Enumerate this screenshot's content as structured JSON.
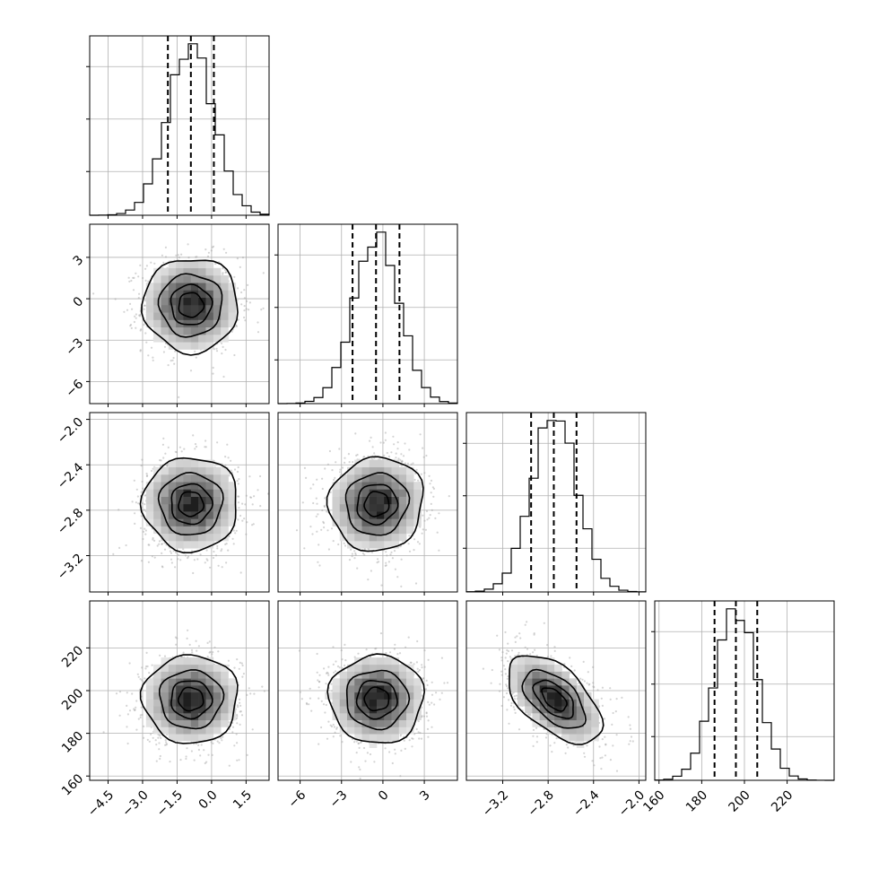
{
  "chart_data": {
    "type": "corner",
    "title": "",
    "grid": true,
    "parameters": [
      {
        "index": 0,
        "range": [
          -5.3,
          2.5
        ],
        "mean": -0.9,
        "sd": 1.0,
        "quantiles": [
          -1.9,
          -0.9,
          0.1
        ],
        "ticks": [
          -4.5,
          -3.0,
          -1.5,
          0.0,
          1.5
        ],
        "tick_labels": [
          "−4.5",
          "−3.0",
          "−1.5",
          "0.0",
          "1.5"
        ]
      },
      {
        "index": 1,
        "range": [
          -7.6,
          5.4
        ],
        "mean": -0.45,
        "sd": 1.65,
        "quantiles": [
          -2.2,
          -0.5,
          1.2
        ],
        "ticks": [
          -6,
          -3,
          0,
          3
        ],
        "tick_labels": [
          "−6",
          "−3",
          "0",
          "3"
        ]
      },
      {
        "index": 2,
        "range": [
          -3.52,
          -1.94
        ],
        "mean": -2.745,
        "sd": 0.2,
        "quantiles": [
          -2.95,
          -2.75,
          -2.55
        ],
        "ticks": [
          -3.2,
          -2.8,
          -2.4,
          -2.0
        ],
        "tick_labels": [
          "−3.2",
          "−2.8",
          "−2.4",
          "−2.0"
        ]
      },
      {
        "index": 3,
        "range": [
          158,
          242
        ],
        "mean": 196,
        "sd": 10,
        "quantiles": [
          186,
          196,
          206
        ],
        "ticks": [
          160,
          180,
          200,
          220
        ],
        "tick_labels": [
          "160",
          "180",
          "200",
          "220"
        ]
      }
    ],
    "correlations": [
      [
        0,
        1,
        0.0
      ],
      [
        0,
        2,
        0.0
      ],
      [
        0,
        3,
        0.0
      ],
      [
        1,
        2,
        0.05
      ],
      [
        1,
        3,
        0.0
      ],
      [
        2,
        3,
        -0.55
      ]
    ],
    "contour_levels_sigma": [
      0.5,
      1.0,
      1.5,
      2.0
    ],
    "histogram_bins": 20,
    "scatter_color": "#a0a0a0",
    "line_color": "#000000"
  }
}
